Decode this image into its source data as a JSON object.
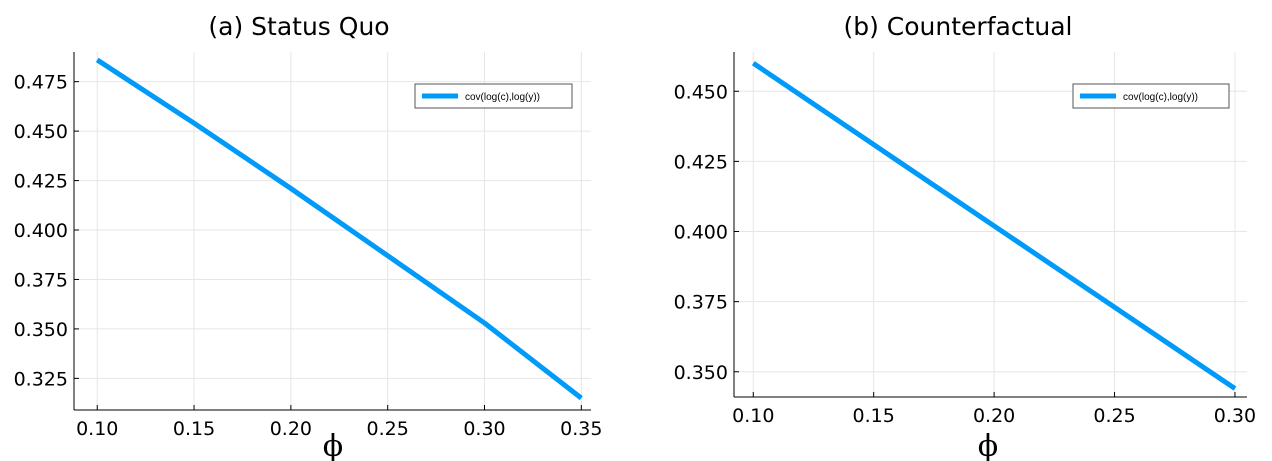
{
  "chart_data": [
    {
      "type": "line",
      "title": "(a) Status Quo",
      "xlabel": "ϕ",
      "ylabel": "",
      "xlim": [
        0.088,
        0.355
      ],
      "ylim": [
        0.309,
        0.49
      ],
      "xticks": [
        0.1,
        0.15,
        0.2,
        0.25,
        0.3,
        0.35
      ],
      "xtick_labels": [
        "0.10",
        "0.15",
        "0.20",
        "0.25",
        "0.30",
        "0.35"
      ],
      "yticks": [
        0.325,
        0.35,
        0.375,
        0.4,
        0.425,
        0.45,
        0.475
      ],
      "ytick_labels": [
        "0.325",
        "0.350",
        "0.375",
        "0.400",
        "0.425",
        "0.450",
        "0.475"
      ],
      "grid": true,
      "legend_position": "top-right",
      "series": [
        {
          "name": "cov(log(c),log(y))",
          "color": "#009af9",
          "x": [
            0.1,
            0.15,
            0.2,
            0.25,
            0.3,
            0.35
          ],
          "y": [
            0.486,
            0.454,
            0.421,
            0.387,
            0.353,
            0.315
          ]
        }
      ]
    },
    {
      "type": "line",
      "title": "(b) Counterfactual",
      "xlabel": "ϕ",
      "ylabel": "",
      "xlim": [
        0.092,
        0.305
      ],
      "ylim": [
        0.341,
        0.464
      ],
      "xticks": [
        0.1,
        0.15,
        0.2,
        0.25,
        0.3
      ],
      "xtick_labels": [
        "0.10",
        "0.15",
        "0.20",
        "0.25",
        "0.30"
      ],
      "yticks": [
        0.35,
        0.375,
        0.4,
        0.425,
        0.45
      ],
      "ytick_labels": [
        "0.350",
        "0.375",
        "0.400",
        "0.425",
        "0.450"
      ],
      "grid": true,
      "legend_position": "top-right",
      "series": [
        {
          "name": "cov(log(c),log(y))",
          "color": "#009af9",
          "x": [
            0.1,
            0.15,
            0.2,
            0.25,
            0.3
          ],
          "y": [
            0.46,
            0.431,
            0.402,
            0.373,
            0.344
          ]
        }
      ]
    }
  ]
}
